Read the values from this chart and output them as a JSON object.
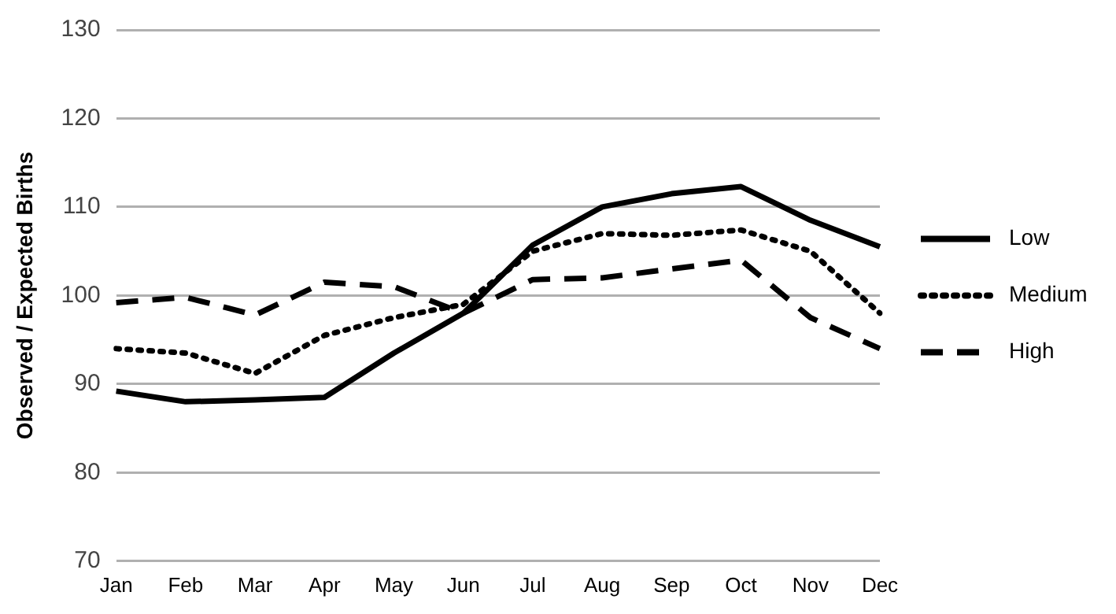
{
  "chart_data": {
    "type": "line",
    "ylabel": "Observed / Expected Births",
    "categories": [
      "Jan",
      "Feb",
      "Mar",
      "Apr",
      "May",
      "Jun",
      "Jul",
      "Aug",
      "Sep",
      "Oct",
      "Nov",
      "Dec"
    ],
    "series": [
      {
        "name": "Low",
        "color": "#000000",
        "line_style": "solid",
        "values": [
          89.2,
          88,
          88.2,
          88.5,
          93.5,
          98,
          105.7,
          110,
          111.5,
          112.3,
          108.5,
          105.5
        ]
      },
      {
        "name": "Medium",
        "color": "#000000",
        "line_style": "dotted",
        "values": [
          94,
          93.5,
          91.2,
          95.5,
          97.5,
          99,
          105,
          107,
          106.8,
          107.4,
          105,
          98
        ]
      },
      {
        "name": "High",
        "color": "#000000",
        "line_style": "dashed",
        "values": [
          99.2,
          99.8,
          97.8,
          101.5,
          101,
          98,
          101.8,
          102,
          103,
          104,
          97.5,
          94
        ]
      }
    ],
    "ylim": [
      70,
      130
    ],
    "yticks": [
      70,
      80,
      90,
      100,
      110,
      120,
      130
    ],
    "grid": "y",
    "legend": "right",
    "marker": "none"
  }
}
